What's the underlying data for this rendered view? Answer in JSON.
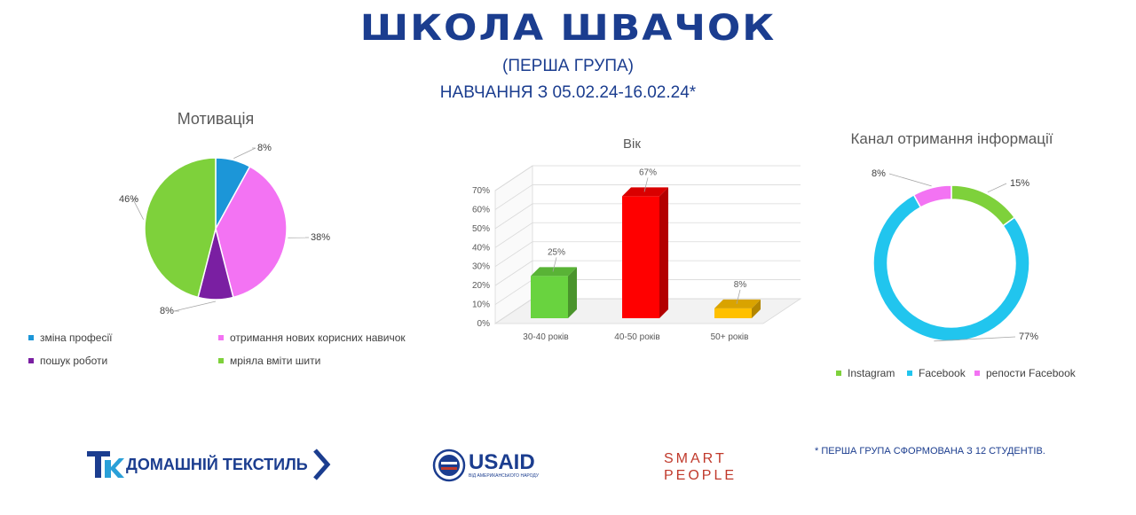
{
  "header": {
    "title": "ШКОЛА ШВАЧОК",
    "subtitle": "(ПЕРША ГРУПА)",
    "dates": "НАВЧАННЯ З 05.02.24-16.02.24*"
  },
  "chart_data": [
    {
      "type": "pie",
      "title": "Мотивація",
      "series": [
        {
          "name": "зміна професії",
          "value": 8,
          "label": "8%",
          "color": "#1c96d8"
        },
        {
          "name": "отримання нових корисних навичок",
          "value": 38,
          "label": "38%",
          "color": "#f373f3"
        },
        {
          "name": "пошук роботи",
          "value": 8,
          "label": "8%",
          "color": "#7a1fa2"
        },
        {
          "name": "мріяла вміти шити",
          "value": 46,
          "label": "46%",
          "color": "#7ed13b"
        }
      ],
      "legend": "bottom"
    },
    {
      "type": "bar",
      "title": "Вік",
      "categories": [
        "30-40 років",
        "40-50 років",
        "50+ років"
      ],
      "values": [
        25,
        67,
        8
      ],
      "labels": [
        "25%",
        "67%",
        "8%"
      ],
      "colors": [
        "#69d33f",
        "#ff0000",
        "#ffc000"
      ],
      "ylim": [
        0,
        70
      ],
      "yticks": [
        "0%",
        "10%",
        "20%",
        "30%",
        "40%",
        "50%",
        "60%",
        "70%"
      ],
      "style": "3d"
    },
    {
      "type": "pie",
      "title": "Канал отримання інформації",
      "series": [
        {
          "name": "Instagram",
          "value": 15,
          "label": "15%",
          "color": "#7ed13b"
        },
        {
          "name": "Facebook",
          "value": 77,
          "label": "77%",
          "color": "#21c5ee"
        },
        {
          "name": "репости Facebook",
          "value": 8,
          "label": "8%",
          "color": "#f373f3"
        }
      ],
      "style": "donut",
      "legend": "bottom"
    }
  ],
  "footer": {
    "footnote": "* ПЕРША ГРУПА СФОРМОВАНА З 12 СТУДЕНТІВ.",
    "logo_tk": "ДОМАШНІЙ ТЕКСТИЛЬ",
    "logo_usaid": "USAID",
    "logo_usaid_sub": "ВІД АМЕРИКАНСЬКОГО НАРОДУ",
    "logo_sp_line1": "SMART",
    "logo_sp_line2": "PEOPLE"
  }
}
